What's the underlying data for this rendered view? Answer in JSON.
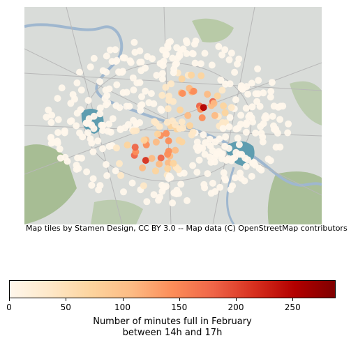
{
  "map": {
    "attribution": "Map tiles by Stamen Design, CC BY 3.0 -- Map data (C) OpenStreetMap contributors",
    "basemap_colors": {
      "land": "#d9dcd9",
      "park": "#9ab582",
      "water": "#9fb7cf",
      "lake": "#5e9db0"
    },
    "point_color_scale": "OrRd"
  },
  "colorbar": {
    "label_line1": "Number of minutes full in February",
    "label_line2": "between 14h and 17h",
    "min": 0,
    "max": 288,
    "ticks": [
      {
        "value": 0,
        "label": "0"
      },
      {
        "value": 50,
        "label": "50"
      },
      {
        "value": 100,
        "label": "100"
      },
      {
        "value": 150,
        "label": "150"
      },
      {
        "value": 200,
        "label": "200"
      },
      {
        "value": 250,
        "label": "250"
      }
    ],
    "gradient_stops": [
      "#fff7ec",
      "#fee8c8",
      "#fdd49e",
      "#fdbb84",
      "#fc8d59",
      "#ef6548",
      "#d7301f",
      "#b30000",
      "#7f0000"
    ]
  }
}
